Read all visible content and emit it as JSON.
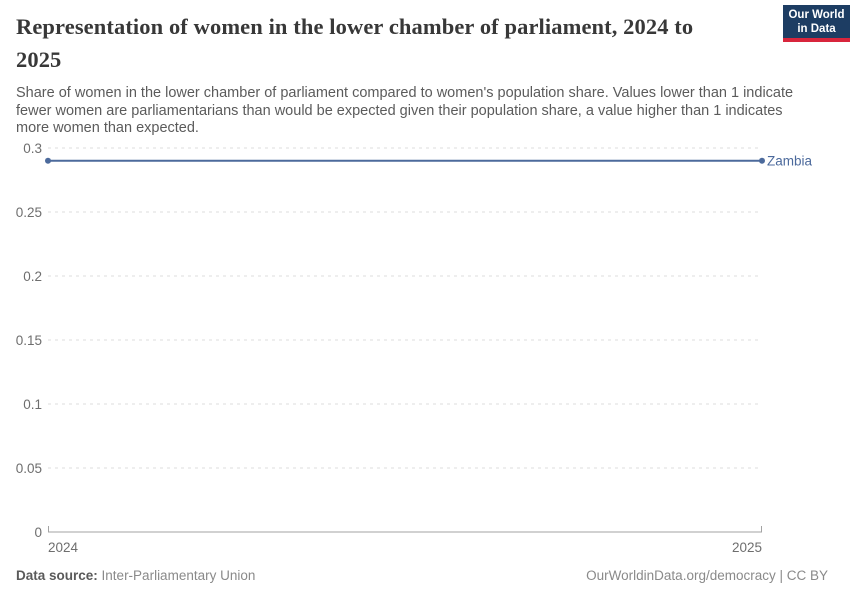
{
  "header": {
    "title": "Representation of women in the lower chamber of parliament, 2024 to 2025",
    "subtitle": "Share of women in the lower chamber of parliament compared to women's population share. Values lower than 1 indicate fewer women are parliamentarians than would be expected given their population share, a value higher than 1 indicates more women than expected.",
    "logo": {
      "line1": "Our World",
      "line2": "in Data",
      "background_color": "#1d3d63",
      "stripe_color": "#d8253c"
    }
  },
  "chart_data": {
    "type": "line",
    "title": "Representation of women in the lower chamber of parliament, 2024 to 2025",
    "xlabel": "",
    "ylabel": "",
    "x": [
      2024,
      2025
    ],
    "x_ticks": [
      "2024",
      "2025"
    ],
    "y_ticks": [
      0,
      0.05,
      0.1,
      0.15,
      0.2,
      0.25,
      0.3
    ],
    "ylim": [
      0,
      0.3
    ],
    "grid": "horizontal-dashed",
    "legend_position": "line-end-label",
    "series": [
      {
        "name": "Zambia",
        "color": "#4c6a9c",
        "x": [
          2024,
          2025
        ],
        "values": [
          0.29,
          0.29
        ]
      }
    ]
  },
  "footer": {
    "source_label": "Data source:",
    "source_value": "Inter-Parliamentary Union",
    "credit": "OurWorldinData.org/democracy | CC BY"
  }
}
